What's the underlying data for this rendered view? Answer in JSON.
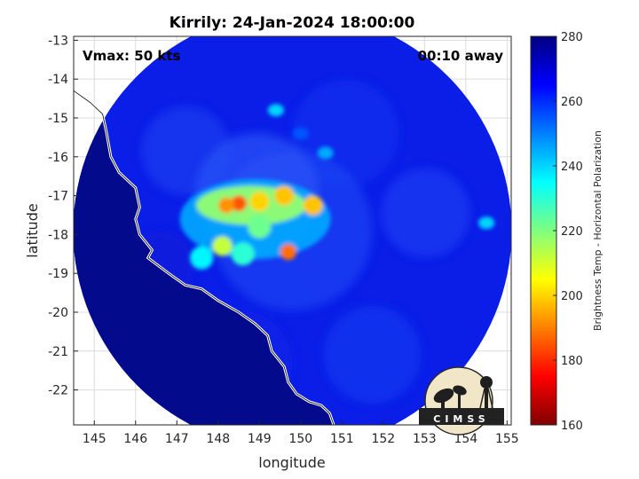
{
  "chart_data": {
    "type": "heatmap",
    "title": "Kirrily: 24-Jan-2024 18:00:00",
    "xlabel": "longitude",
    "ylabel": "latitude",
    "xlim": [
      144.5,
      155.1
    ],
    "ylim": [
      -22.9,
      -12.9
    ],
    "xticks": [
      "145",
      "146",
      "147",
      "148",
      "149",
      "150",
      "151",
      "152",
      "153",
      "154",
      "155"
    ],
    "yticks": [
      "-13",
      "-14",
      "-15",
      "-16",
      "-17",
      "-18",
      "-19",
      "-20",
      "-21",
      "-22"
    ],
    "annotations": {
      "vmax": "Vmax: 50 kts",
      "time_offset": "00:10 away"
    },
    "colorbar": {
      "label": "Brightness Temp - Horizontal Polarization",
      "range": [
        160,
        280
      ],
      "ticks": [
        "280",
        "260",
        "240",
        "220",
        "200",
        "180",
        "160"
      ],
      "colormap": "jet"
    },
    "scan_center": {
      "lon": 149.8,
      "lat": -17.9
    },
    "coastline": [
      [
        144.5,
        -14.3
      ],
      [
        144.9,
        -14.6
      ],
      [
        145.2,
        -14.9
      ],
      [
        145.3,
        -15.4
      ],
      [
        145.4,
        -16.0
      ],
      [
        145.6,
        -16.4
      ],
      [
        146.0,
        -16.8
      ],
      [
        146.1,
        -17.3
      ],
      [
        146.0,
        -17.6
      ],
      [
        146.1,
        -18.0
      ],
      [
        146.4,
        -18.4
      ],
      [
        146.3,
        -18.6
      ],
      [
        146.8,
        -19.0
      ],
      [
        147.2,
        -19.3
      ],
      [
        147.6,
        -19.4
      ],
      [
        148.0,
        -19.7
      ],
      [
        148.5,
        -20.0
      ],
      [
        148.9,
        -20.3
      ],
      [
        149.2,
        -20.6
      ],
      [
        149.3,
        -21.0
      ],
      [
        149.6,
        -21.4
      ],
      [
        149.7,
        -21.8
      ],
      [
        149.9,
        -22.1
      ],
      [
        150.2,
        -22.3
      ],
      [
        150.5,
        -22.4
      ],
      [
        150.7,
        -22.6
      ],
      [
        150.8,
        -22.9
      ]
    ],
    "cold_cores": [
      {
        "lon": 148.5,
        "lat": -17.2,
        "tb": 185
      },
      {
        "lon": 148.2,
        "lat": -17.25,
        "tb": 192
      },
      {
        "lon": 149.0,
        "lat": -17.15,
        "tb": 200
      },
      {
        "lon": 149.6,
        "lat": -17.0,
        "tb": 198
      },
      {
        "lon": 150.3,
        "lat": -17.25,
        "tb": 198
      },
      {
        "lon": 149.7,
        "lat": -18.45,
        "tb": 188
      },
      {
        "lon": 148.1,
        "lat": -18.3,
        "tb": 212
      },
      {
        "lon": 149.0,
        "lat": -17.8,
        "tb": 222
      },
      {
        "lon": 147.6,
        "lat": -18.6,
        "tb": 236
      },
      {
        "lon": 148.6,
        "lat": -18.5,
        "tb": 230
      }
    ],
    "warm_features": [
      {
        "lon": 149.4,
        "lat": -14.8,
        "tb": 240
      },
      {
        "lon": 150.6,
        "lat": -15.9,
        "tb": 245
      },
      {
        "lon": 154.5,
        "lat": -17.7,
        "tb": 240
      },
      {
        "lon": 150.0,
        "lat": -15.4,
        "tb": 255
      }
    ]
  },
  "logo": {
    "text": "CIMSS"
  }
}
